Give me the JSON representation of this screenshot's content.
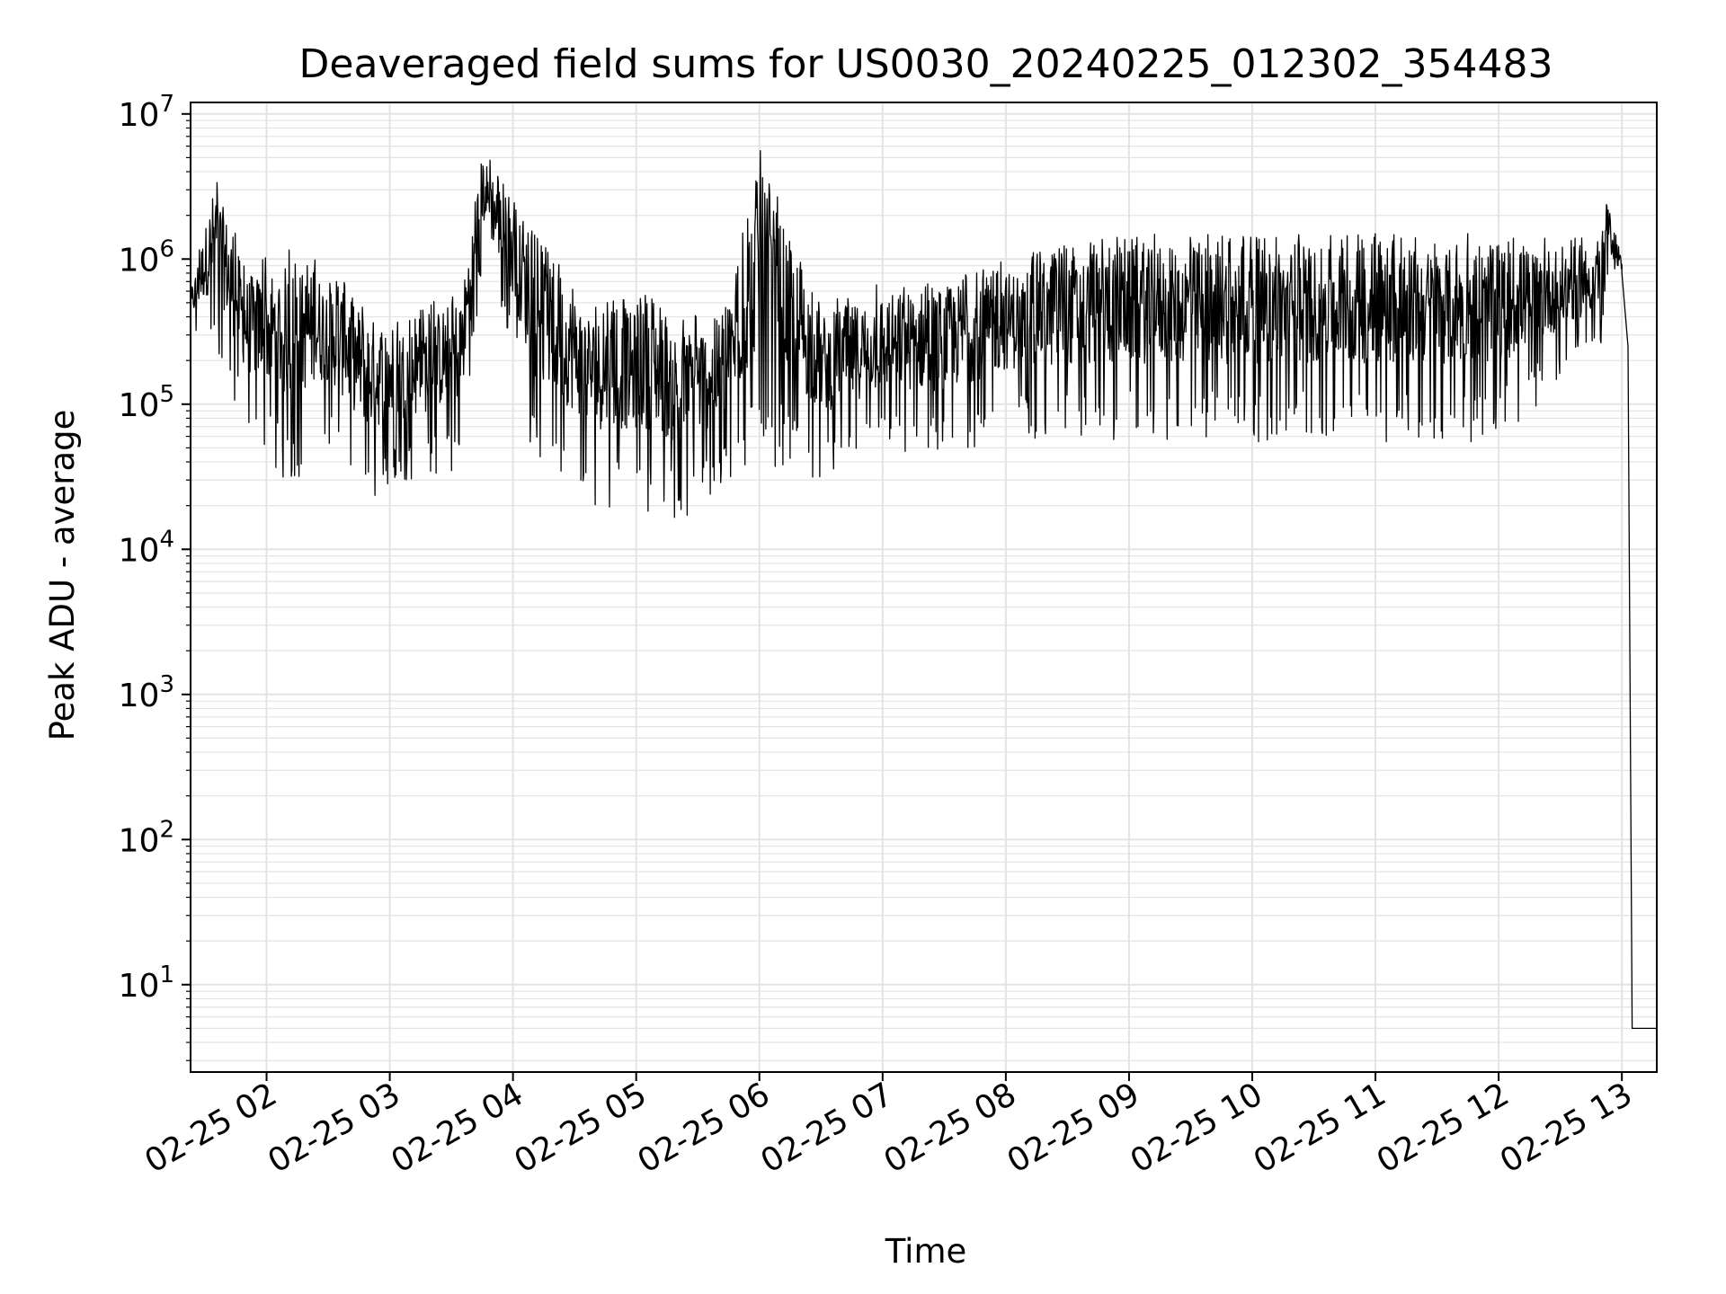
{
  "chart_data": {
    "type": "line",
    "title": "Deaveraged field sums for US0030_20240225_012302_354483",
    "xlabel": "Time",
    "ylabel": "Peak ADU - average",
    "yscale": "log",
    "ylim": [
      2.5,
      12000000
    ],
    "xlim": [
      "2024-02-25 01:23",
      "2024-02-25 13:17"
    ],
    "grid": true,
    "line_color": "#000000",
    "grid_color": "#e3e3e3",
    "x_ticks": [
      {
        "t": "2024-02-25 02:00",
        "label": "02-25 02"
      },
      {
        "t": "2024-02-25 03:00",
        "label": "02-25 03"
      },
      {
        "t": "2024-02-25 04:00",
        "label": "02-25 04"
      },
      {
        "t": "2024-02-25 05:00",
        "label": "02-25 05"
      },
      {
        "t": "2024-02-25 06:00",
        "label": "02-25 06"
      },
      {
        "t": "2024-02-25 07:00",
        "label": "02-25 07"
      },
      {
        "t": "2024-02-25 08:00",
        "label": "02-25 08"
      },
      {
        "t": "2024-02-25 09:00",
        "label": "02-25 09"
      },
      {
        "t": "2024-02-25 10:00",
        "label": "02-25 10"
      },
      {
        "t": "2024-02-25 11:00",
        "label": "02-25 11"
      },
      {
        "t": "2024-02-25 12:00",
        "label": "02-25 12"
      },
      {
        "t": "2024-02-25 13:00",
        "label": "02-25 13"
      }
    ],
    "y_ticks": [
      {
        "value": 10,
        "base": "10",
        "exp": "1"
      },
      {
        "value": 100,
        "base": "10",
        "exp": "2"
      },
      {
        "value": 1000,
        "base": "10",
        "exp": "3"
      },
      {
        "value": 10000,
        "base": "10",
        "exp": "4"
      },
      {
        "value": 100000,
        "base": "10",
        "exp": "5"
      },
      {
        "value": 1000000,
        "base": "10",
        "exp": "6"
      },
      {
        "value": 10000000,
        "base": "10",
        "exp": "7"
      }
    ],
    "series": [
      {
        "envelope": [
          {
            "t": "2024-02-25 01:23",
            "high": 600000,
            "low": 300000
          },
          {
            "t": "2024-02-25 01:35",
            "high": 4200000,
            "low": 220000
          },
          {
            "t": "2024-02-25 01:50",
            "high": 900000,
            "low": 60000
          },
          {
            "t": "2024-02-25 02:10",
            "high": 1200000,
            "low": 25000
          },
          {
            "t": "2024-02-25 02:30",
            "high": 900000,
            "low": 50000
          },
          {
            "t": "2024-02-25 02:50",
            "high": 500000,
            "low": 20000
          },
          {
            "t": "2024-02-25 03:10",
            "high": 400000,
            "low": 30000
          },
          {
            "t": "2024-02-25 03:35",
            "high": 700000,
            "low": 35000
          },
          {
            "t": "2024-02-25 03:45",
            "high": 6000000,
            "low": 900000
          },
          {
            "t": "2024-02-25 03:58",
            "high": 3000000,
            "low": 300000
          },
          {
            "t": "2024-02-25 04:10",
            "high": 1500000,
            "low": 40000
          },
          {
            "t": "2024-02-25 04:40",
            "high": 500000,
            "low": 20000
          },
          {
            "t": "2024-02-25 05:10",
            "high": 600000,
            "low": 18000
          },
          {
            "t": "2024-02-25 05:20",
            "high": 400000,
            "low": 14000
          },
          {
            "t": "2024-02-25 05:45",
            "high": 500000,
            "low": 28000
          },
          {
            "t": "2024-02-25 06:00",
            "high": 6000000,
            "low": 40000
          },
          {
            "t": "2024-02-25 06:30",
            "high": 500000,
            "low": 30000
          },
          {
            "t": "2024-02-25 07:00",
            "high": 700000,
            "low": 45000
          },
          {
            "t": "2024-02-25 07:30",
            "high": 800000,
            "low": 40000
          },
          {
            "t": "2024-02-25 08:00",
            "high": 1000000,
            "low": 60000
          },
          {
            "t": "2024-02-25 08:30",
            "high": 1300000,
            "low": 55000
          },
          {
            "t": "2024-02-25 09:00",
            "high": 1500000,
            "low": 55000
          },
          {
            "t": "2024-02-25 10:00",
            "high": 1500000,
            "low": 55000
          },
          {
            "t": "2024-02-25 11:00",
            "high": 1500000,
            "low": 55000
          },
          {
            "t": "2024-02-25 12:00",
            "high": 1500000,
            "low": 55000
          },
          {
            "t": "2024-02-25 12:50",
            "high": 1400000,
            "low": 250000
          },
          {
            "t": "2024-02-25 12:53",
            "high": 2700000,
            "low": 700000
          },
          {
            "t": "2024-02-25 13:00",
            "high": 1000000,
            "low": 700000
          }
        ],
        "tail": [
          {
            "t": "2024-02-25 13:00",
            "value": 800000
          },
          {
            "t": "2024-02-25 13:03",
            "value": 250000
          },
          {
            "t": "2024-02-25 13:05",
            "value": 5
          },
          {
            "t": "2024-02-25 13:17",
            "value": 5
          }
        ]
      }
    ]
  }
}
